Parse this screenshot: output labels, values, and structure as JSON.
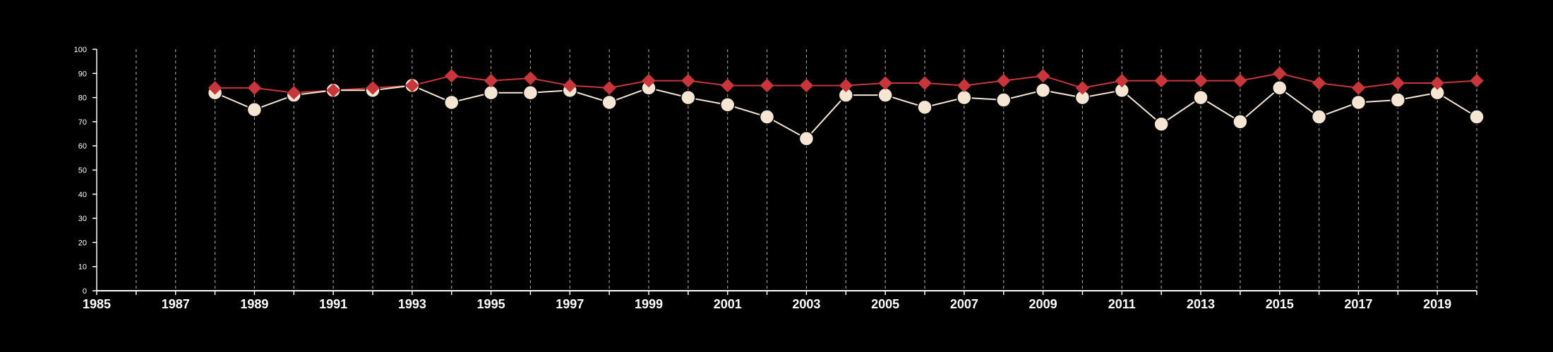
{
  "chart_data": {
    "type": "line",
    "title": "",
    "xlabel": "",
    "ylabel": "",
    "xlim": [
      1985,
      2020
    ],
    "ylim": [
      0,
      100
    ],
    "x_ticks": [
      "1985",
      "1987",
      "1989",
      "1991",
      "1993",
      "1995",
      "1997",
      "1999",
      "2001",
      "2003",
      "2005",
      "2007",
      "2009",
      "2011",
      "2013",
      "2015",
      "2017",
      "2019"
    ],
    "y_ticks": [
      "0",
      "10",
      "20",
      "30",
      "40",
      "50",
      "60",
      "70",
      "80",
      "90",
      "100"
    ],
    "grid": "vertical dashed lines at every year",
    "legend": "none",
    "x": [
      1988,
      1989,
      1990,
      1991,
      1992,
      1993,
      1994,
      1995,
      1996,
      1997,
      1998,
      1999,
      2000,
      2001,
      2002,
      2003,
      2004,
      2005,
      2006,
      2007,
      2008,
      2009,
      2010,
      2011,
      2012,
      2013,
      2014,
      2015,
      2016,
      2017,
      2018,
      2019,
      2020
    ],
    "series": [
      {
        "marker": "diamond",
        "color": "#c8353a",
        "values": [
          84,
          84,
          82,
          83,
          84,
          85,
          89,
          87,
          88,
          85,
          84,
          87,
          87,
          85,
          85,
          85,
          85,
          86,
          86,
          85,
          87,
          89,
          84,
          87,
          87,
          87,
          87,
          90,
          86,
          84,
          86,
          86,
          87
        ]
      },
      {
        "marker": "circle",
        "color": "#f5e6d3",
        "values": [
          82,
          75,
          81,
          83,
          83,
          85,
          78,
          82,
          82,
          83,
          78,
          84,
          80,
          77,
          72,
          63,
          81,
          81,
          76,
          80,
          79,
          83,
          80,
          83,
          69,
          80,
          70,
          84,
          72,
          78,
          79,
          82,
          72
        ]
      }
    ],
    "colors": {
      "background": "#000000",
      "axis": "#ffffff",
      "grid": "#9a9a9a"
    }
  }
}
